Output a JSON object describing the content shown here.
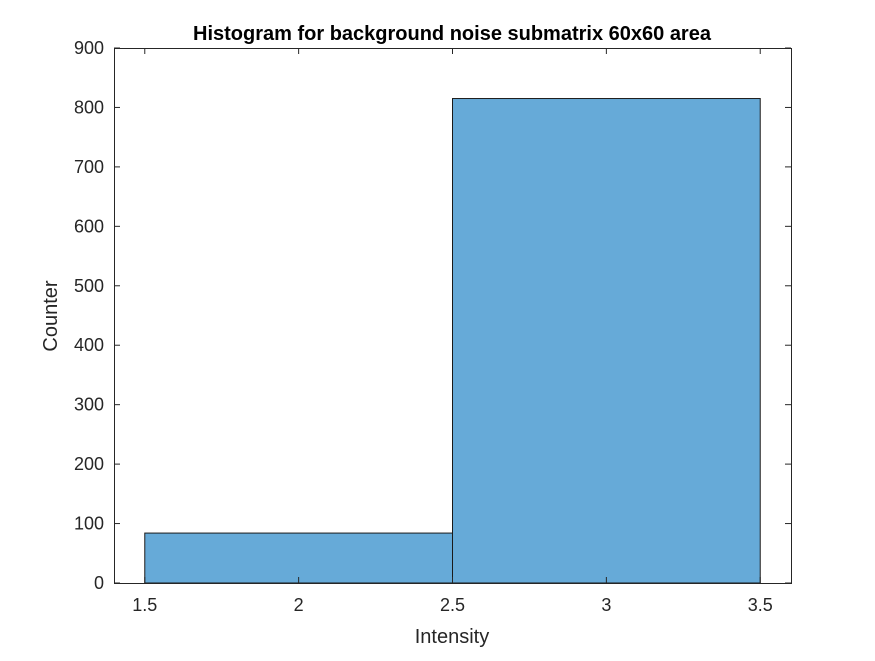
{
  "chart_data": {
    "type": "bar",
    "subtype": "histogram",
    "title": "Histogram for background noise submatrix 60x60 area",
    "xlabel": "Intensity",
    "ylabel": "Counter",
    "xlim": [
      1.4,
      3.6
    ],
    "ylim": [
      0,
      900
    ],
    "xticks": [
      "1.5",
      "2",
      "2.5",
      "3",
      "3.5"
    ],
    "xtick_values": [
      1.5,
      2,
      2.5,
      3,
      3.5
    ],
    "yticks": [
      "0",
      "100",
      "200",
      "300",
      "400",
      "500",
      "600",
      "700",
      "800",
      "900"
    ],
    "ytick_values": [
      0,
      100,
      200,
      300,
      400,
      500,
      600,
      700,
      800,
      900
    ],
    "bins": [
      {
        "x0": 1.5,
        "x1": 2.5,
        "value": 84
      },
      {
        "x0": 2.5,
        "x1": 3.5,
        "value": 815
      }
    ],
    "grid": false,
    "legend": "none",
    "colors": {
      "bar_fill": "#66aad8",
      "bar_edge": "#1a1a1a",
      "axis": "#262626"
    }
  }
}
